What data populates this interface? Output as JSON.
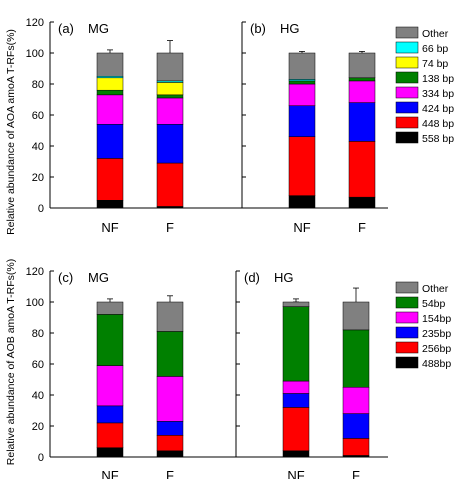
{
  "chart_data": [
    {
      "type": "bar",
      "stacked": true,
      "panel_label": "(a)",
      "panel_title": "MG",
      "categories": [
        "NF",
        "F"
      ],
      "series": [
        {
          "name": "558 bp",
          "color": "#000000",
          "values": [
            5,
            1
          ],
          "error": [
            2,
            1
          ]
        },
        {
          "name": "448 bp",
          "color": "#ff0000",
          "values": [
            27,
            28
          ],
          "error": [
            3,
            4
          ]
        },
        {
          "name": "424 bp",
          "color": "#0000ff",
          "values": [
            22,
            25
          ],
          "error": [
            7,
            4
          ]
        },
        {
          "name": "334 bp",
          "color": "#ff00ff",
          "values": [
            19,
            17
          ],
          "error": [
            2,
            2
          ]
        },
        {
          "name": "138 bp",
          "color": "#008000",
          "values": [
            3,
            2
          ],
          "error": [
            1,
            1
          ]
        },
        {
          "name": "74 bp",
          "color": "#ffff00",
          "values": [
            8,
            8
          ],
          "error": [
            3,
            3
          ]
        },
        {
          "name": "66 bp",
          "color": "#00ffff",
          "values": [
            1,
            1
          ],
          "error": [
            0,
            0
          ]
        },
        {
          "name": "Other",
          "color": "#808080",
          "values": [
            15,
            18
          ],
          "error": [
            2,
            8
          ]
        }
      ],
      "ylim": [
        0,
        120
      ],
      "yticks": [
        "0",
        "20",
        "40",
        "60",
        "80",
        "100",
        "120"
      ]
    },
    {
      "type": "bar",
      "stacked": true,
      "panel_label": "(b)",
      "panel_title": "HG",
      "categories": [
        "NF",
        "F"
      ],
      "series": [
        {
          "name": "558 bp",
          "color": "#000000",
          "values": [
            8,
            7
          ],
          "error": [
            3,
            2
          ]
        },
        {
          "name": "448 bp",
          "color": "#ff0000",
          "values": [
            38,
            36
          ],
          "error": [
            6,
            7
          ]
        },
        {
          "name": "424 bp",
          "color": "#0000ff",
          "values": [
            20,
            25
          ],
          "error": [
            5,
            7
          ]
        },
        {
          "name": "334 bp",
          "color": "#ff00ff",
          "values": [
            14,
            14
          ],
          "error": [
            3,
            2
          ]
        },
        {
          "name": "138 bp",
          "color": "#008000",
          "values": [
            2,
            2
          ],
          "error": [
            1,
            1
          ]
        },
        {
          "name": "74 bp",
          "color": "#ffff00",
          "values": [
            0,
            0
          ],
          "error": [
            0,
            0
          ]
        },
        {
          "name": "66 bp",
          "color": "#00ffff",
          "values": [
            1,
            0
          ],
          "error": [
            0,
            0
          ]
        },
        {
          "name": "Other",
          "color": "#808080",
          "values": [
            17,
            16
          ],
          "error": [
            1,
            1
          ]
        }
      ],
      "ylim": [
        0,
        120
      ],
      "yticks": []
    },
    {
      "type": "bar",
      "stacked": true,
      "panel_label": "(c)",
      "panel_title": "MG",
      "categories": [
        "NF",
        "F"
      ],
      "series": [
        {
          "name": "488bp",
          "color": "#000000",
          "values": [
            6,
            4
          ],
          "error": [
            3,
            2
          ]
        },
        {
          "name": "256bp",
          "color": "#ff0000",
          "values": [
            16,
            10
          ],
          "error": [
            3,
            3
          ]
        },
        {
          "name": "235bp",
          "color": "#0000ff",
          "values": [
            11,
            9
          ],
          "error": [
            7,
            3
          ]
        },
        {
          "name": "154bp",
          "color": "#ff00ff",
          "values": [
            26,
            29
          ],
          "error": [
            9,
            7
          ]
        },
        {
          "name": "54bp",
          "color": "#008000",
          "values": [
            33,
            29
          ],
          "error": [
            6,
            12
          ]
        },
        {
          "name": "Other",
          "color": "#808080",
          "values": [
            8,
            19
          ],
          "error": [
            2,
            4
          ]
        }
      ],
      "ylim": [
        0,
        120
      ],
      "yticks": [
        "0",
        "20",
        "40",
        "60",
        "80",
        "100",
        "120"
      ]
    },
    {
      "type": "bar",
      "stacked": true,
      "panel_label": "(d)",
      "panel_title": "HG",
      "categories": [
        "NF",
        "F"
      ],
      "series": [
        {
          "name": "488bp",
          "color": "#000000",
          "values": [
            4,
            1
          ],
          "error": [
            2,
            1
          ]
        },
        {
          "name": "256bp",
          "color": "#ff0000",
          "values": [
            28,
            11
          ],
          "error": [
            8,
            2
          ]
        },
        {
          "name": "235bp",
          "color": "#0000ff",
          "values": [
            9,
            16
          ],
          "error": [
            3,
            4
          ]
        },
        {
          "name": "154bp",
          "color": "#ff00ff",
          "values": [
            8,
            17
          ],
          "error": [
            2,
            7
          ]
        },
        {
          "name": "54bp",
          "color": "#008000",
          "values": [
            48,
            37
          ],
          "error": [
            3,
            14
          ]
        },
        {
          "name": "Other",
          "color": "#808080",
          "values": [
            3,
            18
          ],
          "error": [
            2,
            9
          ]
        }
      ],
      "ylim": [
        0,
        120
      ],
      "yticks": []
    }
  ],
  "ylabels": [
    "Relative abundance of AOA amoA T-RFs(%)",
    "Relative abundance of AOB amoA T-RFs(%)"
  ],
  "legend_placement": "right of panels (b) and (d)"
}
